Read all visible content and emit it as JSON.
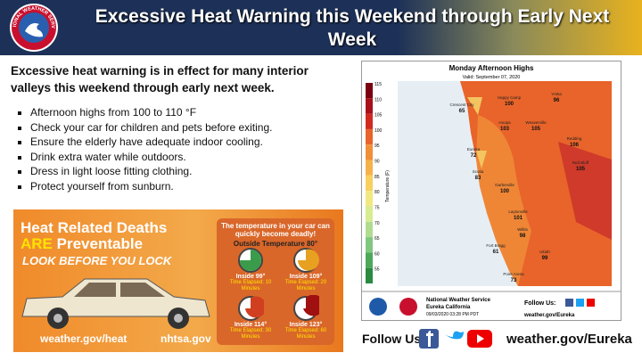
{
  "header": {
    "logo_text": "NATIONAL WEATHER SERVICE",
    "title": "Excessive Heat Warning this Weekend through Early Next Week"
  },
  "intro": "Excessive heat warning is in effect for many interior valleys this weekend through early next week.",
  "bullets": [
    "Afternoon highs from 100 to 110 °F",
    "Check your car for children and pets before exiting.",
    "Ensure the elderly have adequate indoor cooling.",
    "Drink extra water while outdoors.",
    "Dress in light loose fitting clothing.",
    "Protect yourself from sunburn."
  ],
  "heat_graphic": {
    "line1": "Heat Related Deaths",
    "are": "ARE",
    "preventable": "Preventable",
    "slogan": "LOOK BEFORE YOU LOCK",
    "panel_title": "The temperature in your car can quickly become deadly!",
    "outside": "Outside Temperature 80°",
    "gauges": [
      {
        "inside": "Inside 99°",
        "elapsed": "Time Elapsed: 10 Minutes"
      },
      {
        "inside": "Inside 109°",
        "elapsed": "Time Elapsed: 20 Minutes"
      },
      {
        "inside": "Inside 114°",
        "elapsed": "Time Elapsed: 30 Minutes"
      },
      {
        "inside": "Inside 123°",
        "elapsed": "Time Elapsed: 60 Minutes"
      }
    ],
    "link1": "weather.gov/heat",
    "link2": "nhtsa.gov"
  },
  "map": {
    "title": "Monday Afternoon Highs",
    "valid": "Valid: September 07, 2020",
    "scale_label": "Temperature (F)",
    "scale_ticks": [
      115,
      110,
      105,
      100,
      95,
      90,
      85,
      80,
      75,
      70,
      65,
      60,
      55
    ],
    "cities": [
      {
        "name": "Crescent City",
        "value": "65"
      },
      {
        "name": "Happy Camp",
        "value": "100"
      },
      {
        "name": "Yreka",
        "value": "96"
      },
      {
        "name": "Hoopa",
        "value": "103"
      },
      {
        "name": "Weaverville",
        "value": "105"
      },
      {
        "name": "Eureka",
        "value": "72"
      },
      {
        "name": "Redding",
        "value": "106"
      },
      {
        "name": "Scotia",
        "value": "83"
      },
      {
        "name": "Red Bluff",
        "value": "105"
      },
      {
        "name": "Garberville",
        "value": "100"
      },
      {
        "name": "Laytonville",
        "value": "101"
      },
      {
        "name": "Willits",
        "value": "98"
      },
      {
        "name": "Fort Bragg",
        "value": "61"
      },
      {
        "name": "Ukiah",
        "value": "99"
      },
      {
        "name": "Point Arena",
        "value": "73"
      }
    ],
    "office": "National Weather Service",
    "location": "Eureka California",
    "timestamp": "09/03/2020 03:28 PM PDT",
    "follow": "Follow Us:",
    "url": "weather.gov/Eureka"
  },
  "footer": {
    "follow": "Follow Us:",
    "url": "weather.gov/Eureka"
  }
}
